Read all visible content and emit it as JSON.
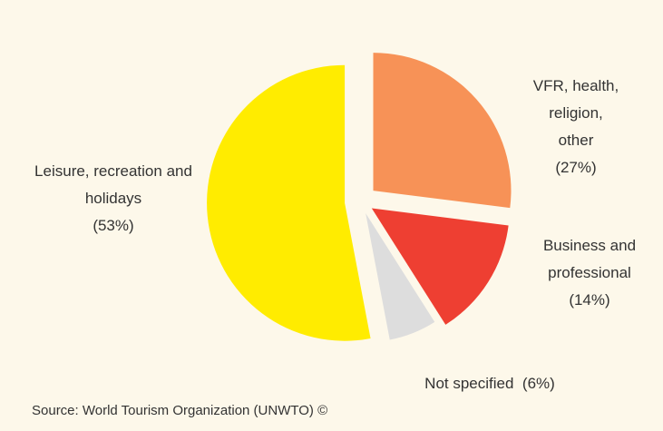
{
  "chart_data": {
    "type": "pie",
    "categories": [
      "VFR, health, religion, other",
      "Business and professional",
      "Not specified",
      "Leisure, recreation and holidays"
    ],
    "values": [
      27,
      14,
      6,
      53
    ],
    "value_labels": [
      "(27%)",
      "(14%)",
      "(6%)",
      "(53%)"
    ],
    "colors": [
      "#f79257",
      "#ee3f32",
      "#dddddd",
      "#ffec00"
    ],
    "source": "Source: World Tourism Organization (UNWTO) ©"
  }
}
